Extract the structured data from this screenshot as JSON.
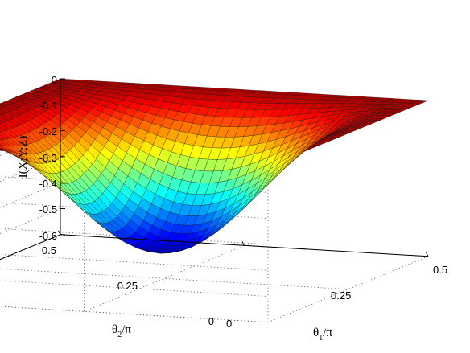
{
  "chart_data": {
    "type": "surface",
    "title": "",
    "xlabel": {
      "main": "θ",
      "sub": "1",
      "tail": "/π"
    },
    "ylabel": {
      "main": "θ",
      "sub": "2",
      "tail": "/π"
    },
    "zlabel": "I(X;Y;Z)",
    "x_ticks": [
      "0",
      "0.25",
      "0.5"
    ],
    "y_ticks": [
      "0",
      "0.25",
      "0.5"
    ],
    "z_ticks": [
      "0",
      "-0.1",
      "-0.2",
      "-0.3",
      "-0.4",
      "-0.5",
      "-0.6"
    ],
    "xlim": [
      0,
      0.5
    ],
    "ylim": [
      0,
      0.5
    ],
    "zlim": [
      -0.6,
      0
    ],
    "grid": true,
    "colormap": "jet",
    "surface": {
      "formula": "z = -0.5 * sin(2*pi*x)^2 * sin(2*pi*y)^2, x = θ1/π, y = θ2/π",
      "min_value": -0.5,
      "min_at": [
        0.25,
        0.25
      ],
      "max_value": 0,
      "grid_samples": 41
    }
  }
}
